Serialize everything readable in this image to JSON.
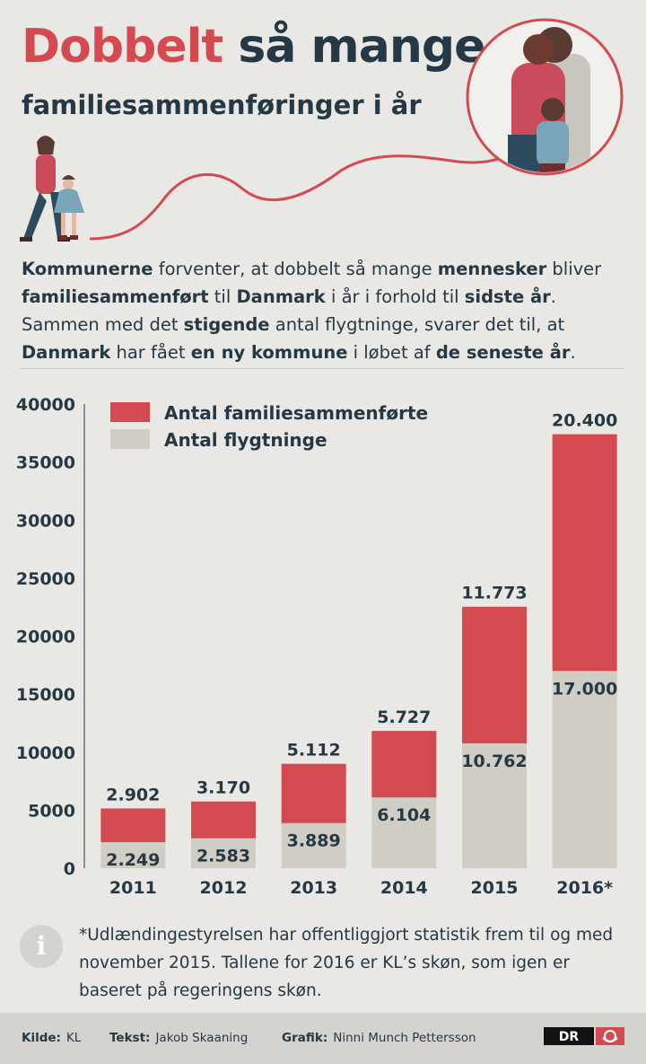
{
  "header": {
    "title_red": "Dobbelt",
    "title_dark": "så mange",
    "subtitle": "familiesammenføringer i år"
  },
  "intro": {
    "p1": "Kommunerne",
    "p2": " forventer, at dobbelt så mange ",
    "p3": "mennesker",
    "p4": " bliver ",
    "p5": "familiesammenført",
    "p6": " til ",
    "p7": "Danmark",
    "p8": " i år i forhold til ",
    "p9": "sidste år",
    "p10": ". Sammen med det ",
    "p11": "stigende",
    "p12": " antal flygtninge, svarer det til, at ",
    "p13": "Danmark",
    "p14": " har fået ",
    "p15": "en ny kommune",
    "p16": " i løbet af ",
    "p17": "de seneste år",
    "p18": "."
  },
  "chart_data": {
    "type": "bar",
    "stacked": true,
    "categories": [
      "2011",
      "2012",
      "2013",
      "2014",
      "2015",
      "2016*"
    ],
    "series": [
      {
        "name": "Antal flygtninge",
        "values": [
          2249,
          2583,
          3889,
          6104,
          10762,
          17000
        ],
        "labels": [
          "2.249",
          "2.583",
          "3.889",
          "6.104",
          "10.762",
          "17.000"
        ],
        "color": "#cfcdc4"
      },
      {
        "name": "Antal familiesammenførte",
        "values": [
          2902,
          3170,
          5112,
          5727,
          11773,
          20400
        ],
        "labels": [
          "2.902",
          "3.170",
          "5.112",
          "5.727",
          "11.773",
          "20.400"
        ],
        "color": "#d34a51"
      }
    ],
    "y_ticks": [
      "0",
      "5000",
      "10000",
      "15000",
      "20000",
      "25000",
      "30000",
      "35000",
      "40000"
    ],
    "ylim": [
      0,
      40000
    ],
    "legend_order": [
      "Antal familiesammenførte",
      "Antal flygtninge"
    ],
    "legend_position": "top-left",
    "grid": false
  },
  "note": {
    "icon": "info-icon",
    "text": "*Udlændingestyrelsen har offentliggjort statistik frem til og med november 2015. Tallene for 2016 er KL’s skøn, som igen er baseret på regeringens skøn."
  },
  "footer": {
    "source_label": "Kilde:",
    "source_value": "KL",
    "text_label": "Tekst:",
    "text_value": "Jakob Skaaning",
    "graphic_label": "Grafik:",
    "graphic_value": "Ninni Munch Pettersson",
    "logo_text": "DR"
  },
  "colors": {
    "accent_red": "#d34a51",
    "dark_text": "#253845",
    "neutral_bar": "#cfcdc4",
    "background": "#e9e8e5"
  }
}
